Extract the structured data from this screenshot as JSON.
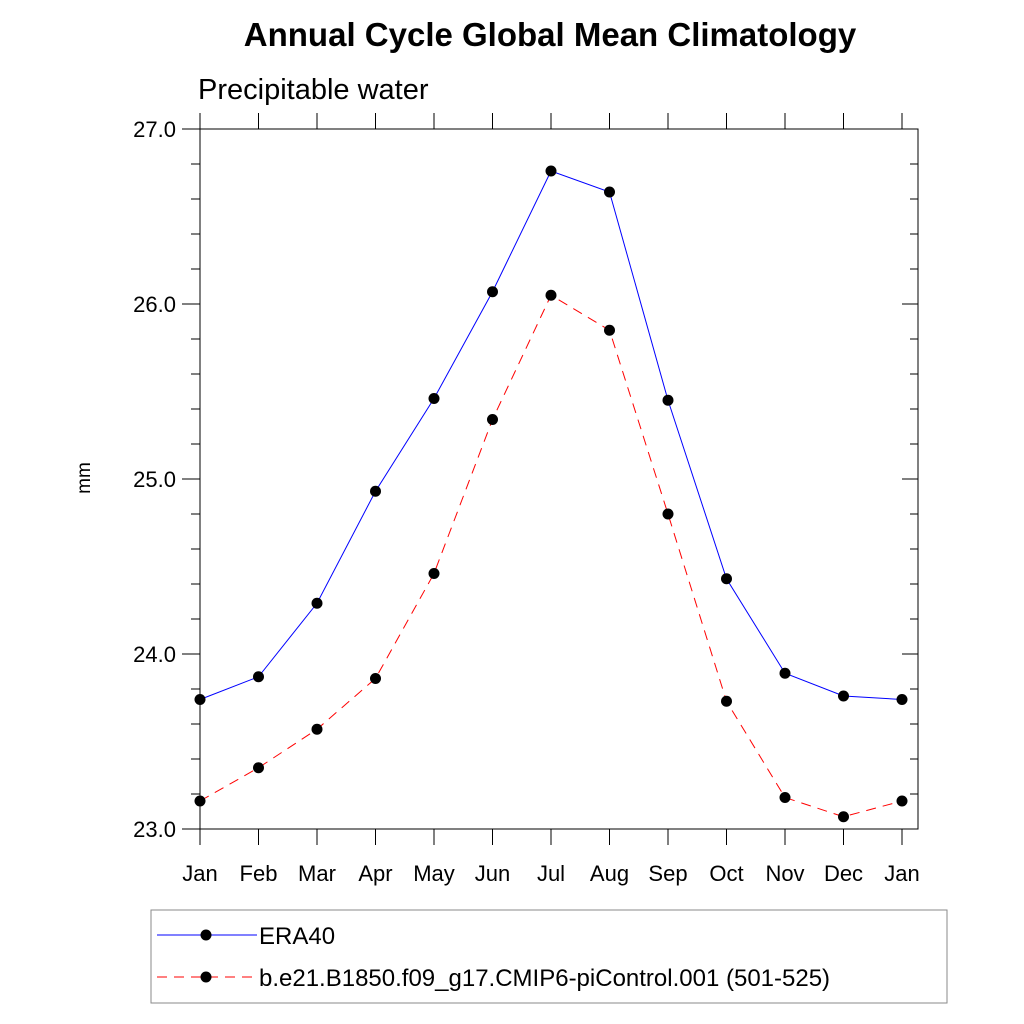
{
  "colors": {
    "era40": "#0000ff",
    "model": "#ff0000",
    "marker": "#000000"
  },
  "chart_data": {
    "type": "line",
    "title": "Annual Cycle Global Mean Climatology",
    "subtitle": "Precipitable water",
    "xlabel": "",
    "ylabel": "mm",
    "categories": [
      "Jan",
      "Feb",
      "Mar",
      "Apr",
      "May",
      "Jun",
      "Jul",
      "Aug",
      "Sep",
      "Oct",
      "Nov",
      "Dec",
      "Jan"
    ],
    "ylim": [
      23.0,
      27.0
    ],
    "yticks": [
      "23.0",
      "24.0",
      "25.0",
      "26.0",
      "27.0"
    ],
    "legend_position": "bottom",
    "series": [
      {
        "name": "ERA40",
        "line_style": "solid",
        "color": "#0000ff",
        "values": [
          23.74,
          23.87,
          24.29,
          24.93,
          25.46,
          26.07,
          26.76,
          26.64,
          25.45,
          24.43,
          23.89,
          23.76,
          23.74
        ]
      },
      {
        "name": "b.e21.B1850.f09_g17.CMIP6-piControl.001 (501-525)",
        "line_style": "dashed",
        "color": "#ff0000",
        "values": [
          23.16,
          23.35,
          23.57,
          23.86,
          24.46,
          25.34,
          26.05,
          25.85,
          24.8,
          23.73,
          23.18,
          23.07,
          23.16
        ]
      }
    ]
  }
}
